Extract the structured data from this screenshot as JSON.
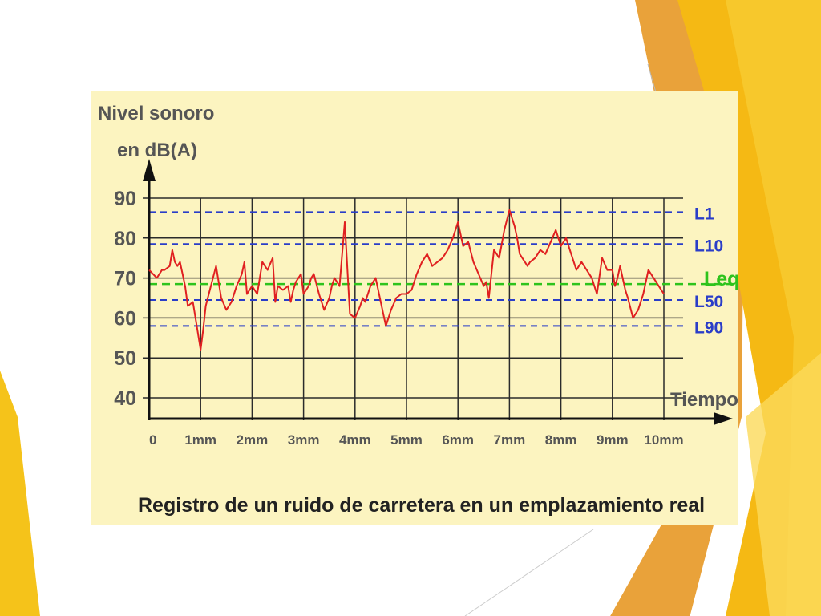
{
  "slide": {
    "accent_colors": [
      "#f5b914",
      "#e9a23a",
      "#f7c82c",
      "#fbd95a"
    ]
  },
  "chart_data": {
    "type": "line",
    "title": "Registro de un ruido de carretera en un emplazamiento real",
    "ylabel_lines": [
      "Nivel sonoro",
      "en dB(A)"
    ],
    "xlabel": "Tiempo",
    "y_ticks": [
      40,
      50,
      60,
      70,
      80,
      90
    ],
    "ylim": [
      40,
      90
    ],
    "x_tick_labels": [
      "0",
      "1mm",
      "2mm",
      "3mm",
      "4mm",
      "5mm",
      "6mm",
      "7mm",
      "8mm",
      "9mm",
      "10mm"
    ],
    "xlim": [
      0,
      10
    ],
    "grid": true,
    "series": [
      {
        "color": "#e02020",
        "x": [
          0,
          0.15,
          0.25,
          0.3,
          0.4,
          0.45,
          0.5,
          0.55,
          0.6,
          0.7,
          0.75,
          0.85,
          0.9,
          1.0,
          1.05,
          1.1,
          1.2,
          1.3,
          1.4,
          1.5,
          1.6,
          1.7,
          1.8,
          1.85,
          1.9,
          2.0,
          2.1,
          2.2,
          2.3,
          2.4,
          2.45,
          2.5,
          2.6,
          2.7,
          2.75,
          2.8,
          2.85,
          2.9,
          2.95,
          3.0,
          3.1,
          3.15,
          3.2,
          3.3,
          3.4,
          3.5,
          3.55,
          3.6,
          3.7,
          3.8,
          3.9,
          4.0,
          4.1,
          4.15,
          4.2,
          4.3,
          4.4,
          4.5,
          4.6,
          4.7,
          4.8,
          4.9,
          5.0,
          5.1,
          5.2,
          5.3,
          5.4,
          5.5,
          5.6,
          5.7,
          5.8,
          5.9,
          6.0,
          6.1,
          6.2,
          6.3,
          6.4,
          6.5,
          6.55,
          6.6,
          6.7,
          6.75,
          6.8,
          6.9,
          7.0,
          7.1,
          7.15,
          7.2,
          7.3,
          7.35,
          7.4,
          7.5,
          7.6,
          7.7,
          7.8,
          7.9,
          8.0,
          8.1,
          8.2,
          8.3,
          8.4,
          8.5,
          8.6,
          8.7,
          8.8,
          8.9,
          9.0,
          9.05,
          9.1,
          9.15,
          9.2,
          9.25,
          9.3,
          9.4,
          9.5,
          9.6,
          9.7,
          9.8,
          9.9,
          10.0
        ],
        "values": [
          72,
          70,
          72,
          72,
          73,
          77,
          74,
          73,
          74,
          68,
          63,
          64,
          60,
          52,
          57,
          63,
          68,
          73,
          65,
          62,
          64,
          68,
          71,
          74,
          66,
          68,
          66,
          74,
          72,
          75,
          64,
          68,
          67,
          68,
          64,
          67,
          69,
          70,
          71,
          66,
          68,
          70,
          71,
          66,
          62,
          65,
          68,
          70,
          68,
          84,
          61,
          60,
          63,
          65,
          64,
          68,
          70,
          64,
          58,
          62,
          65,
          66,
          66,
          67,
          71,
          74,
          76,
          73,
          74,
          75,
          77,
          80,
          84,
          78,
          79,
          74,
          71,
          68,
          69,
          65,
          77,
          76,
          75,
          82,
          87,
          83,
          80,
          76,
          74,
          73,
          74,
          75,
          77,
          76,
          79,
          82,
          78,
          80,
          76,
          72,
          74,
          72,
          70,
          66,
          75,
          72,
          72,
          68,
          70,
          73,
          70,
          67,
          65,
          60,
          62,
          66,
          72,
          70,
          68,
          66
        ]
      }
    ],
    "reference_lines": [
      {
        "name": "L1",
        "value": 86.5,
        "color": "#2a3dc8"
      },
      {
        "name": "L10",
        "value": 78.5,
        "color": "#2a3dc8"
      },
      {
        "name": "Leq",
        "value": 68.5,
        "color": "#2ec31c"
      },
      {
        "name": "L50",
        "value": 64.5,
        "color": "#2a3dc8"
      },
      {
        "name": "L90",
        "value": 58,
        "color": "#2a3dc8"
      }
    ]
  }
}
